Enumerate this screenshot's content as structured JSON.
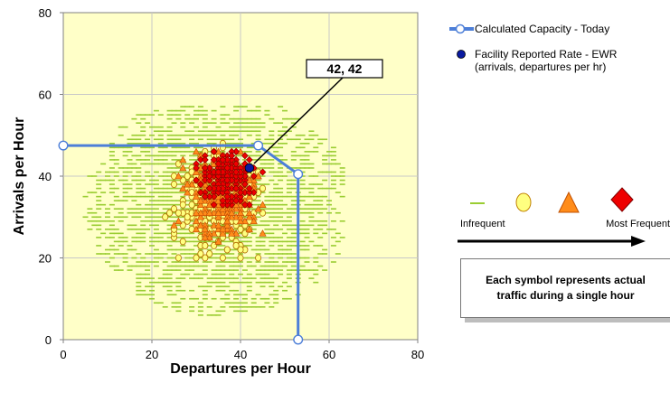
{
  "chart_data": {
    "type": "scatter",
    "title": "",
    "xlabel": "Departures per Hour",
    "ylabel": "Arrivals per Hour",
    "xlim": [
      0,
      80
    ],
    "ylim": [
      0,
      80
    ],
    "xticks": [
      "0",
      "20",
      "40",
      "60",
      "80"
    ],
    "yticks": [
      "0",
      "20",
      "40",
      "60",
      "80"
    ],
    "grid": true,
    "plot_background": "#ffffc8",
    "capacity_curve": {
      "name": "Calculated Capacity - Today",
      "color": "#4d7fd8",
      "x": [
        0,
        44,
        53,
        53
      ],
      "y": [
        47.5,
        47.5,
        40.5,
        0
      ]
    },
    "facility_rate": {
      "name": "Facility Reported Rate - EWR",
      "sublabel": "(arrivals, departures per hr)",
      "x": 42,
      "y": 42,
      "color": "#0a1aa0",
      "callout": "42, 42"
    },
    "frequency_legend": {
      "low_label": "Infrequent",
      "high_label": "Most Frequent",
      "levels": [
        {
          "symbol": "dash",
          "color": "#9acd32"
        },
        {
          "symbol": "circle",
          "color": "#ffff80"
        },
        {
          "symbol": "triangle",
          "color": "#ff8c1a"
        },
        {
          "symbol": "diamond",
          "color": "#ee0000"
        }
      ]
    },
    "note": "Each symbol represents actual traffic during a single hour",
    "traffic_distribution": {
      "infrequent": {
        "x_range": [
          2,
          63
        ],
        "y_range": [
          2,
          57
        ],
        "center": [
          35,
          33
        ]
      },
      "yellow": {
        "x_range": [
          20,
          48
        ],
        "y_range": [
          13,
          48
        ],
        "center": [
          34,
          34
        ]
      },
      "orange": {
        "x_range": [
          22,
          47
        ],
        "y_range": [
          16,
          46
        ],
        "center": [
          36,
          36
        ]
      },
      "red": {
        "x_range": [
          27,
          45
        ],
        "y_range": [
          28,
          46
        ],
        "center": [
          37,
          40
        ]
      }
    }
  }
}
